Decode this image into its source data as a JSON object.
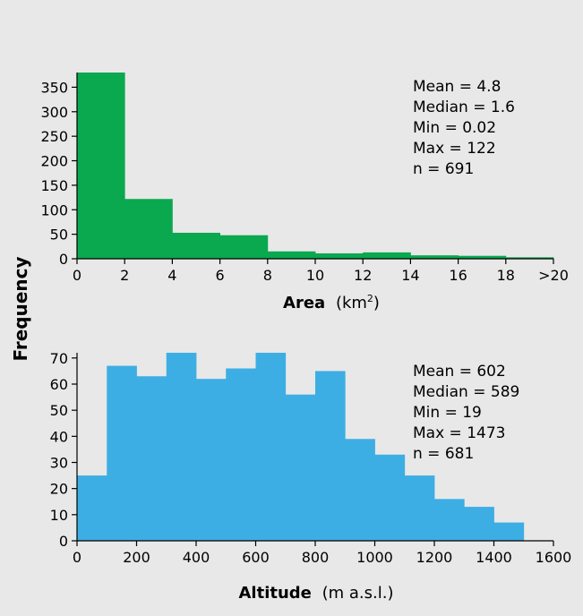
{
  "ylabel": "Frequency",
  "chart_data": [
    {
      "type": "bar",
      "color": "#0aa84f",
      "bin_edges": [
        0,
        2,
        4,
        6,
        8,
        10,
        12,
        14,
        16,
        18,
        20
      ],
      "values": [
        380,
        122,
        53,
        48,
        15,
        11,
        13,
        7,
        6,
        3
      ],
      "xticks": [
        "0",
        "2",
        "4",
        "6",
        "8",
        "10",
        "12",
        "14",
        "16",
        "18",
        ">20"
      ],
      "yticks": [
        "0",
        "50",
        "100",
        "150",
        "200",
        "250",
        "300",
        "350"
      ],
      "ylim": [
        0,
        380
      ],
      "xlabel_bold": "Area",
      "xlabel_unit": "(km",
      "xlabel_sup": "2",
      "xlabel_close": ")",
      "stats": [
        "Mean = 4.8",
        "Median = 1.6",
        "Min = 0.02",
        "Max = 122",
        "n = 691"
      ]
    },
    {
      "type": "bar",
      "color": "#3daee3",
      "bin_edges": [
        0,
        100,
        200,
        300,
        400,
        500,
        600,
        700,
        800,
        900,
        1000,
        1100,
        1200,
        1300,
        1400,
        1500
      ],
      "values": [
        25,
        67,
        63,
        72,
        62,
        66,
        72,
        56,
        65,
        39,
        33,
        25,
        16,
        13,
        7
      ],
      "xticks": [
        "0",
        "200",
        "400",
        "600",
        "800",
        "1000",
        "1200",
        "1400",
        "1600"
      ],
      "yticks": [
        "0",
        "10",
        "20",
        "30",
        "40",
        "50",
        "60",
        "70"
      ],
      "ylim": [
        0,
        72
      ],
      "xlabel_bold": "Altitude",
      "xlabel_unit": "(m a.s.l.)",
      "stats": [
        "Mean = 602",
        "Median = 589",
        "Min = 19",
        "Max = 1473",
        "n = 681"
      ]
    }
  ]
}
